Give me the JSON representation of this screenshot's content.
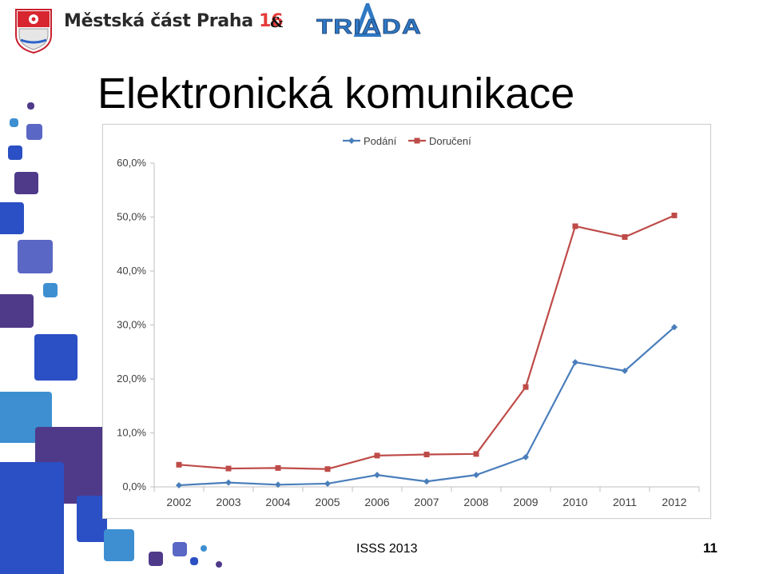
{
  "header": {
    "org_name": "Městská část Praha",
    "org_number": "16",
    "ampersand": "&",
    "partner_logo_text": "TRIADA"
  },
  "title": "Elektronická komunikace",
  "footer": {
    "event": "ISSS 2013",
    "page_number": "11"
  },
  "colors": {
    "series_podani": "#4a7ebb",
    "series_doruceni": "#be4b48",
    "deco_blue": "#2b4fc4",
    "deco_purple": "#4f3a8a",
    "deco_light_blue": "#3d8fd1"
  },
  "chart_data": {
    "type": "line",
    "title": "",
    "xlabel": "",
    "ylabel": "",
    "x": [
      "2002",
      "2003",
      "2004",
      "2005",
      "2006",
      "2007",
      "2008",
      "2009",
      "2010",
      "2011",
      "2012"
    ],
    "ylim": [
      0,
      60
    ],
    "y_ticks": [
      0,
      10,
      20,
      30,
      40,
      50,
      60
    ],
    "y_tick_labels": [
      "0,0%",
      "10,0%",
      "20,0%",
      "30,0%",
      "40,0%",
      "50,0%",
      "60,0%"
    ],
    "grid": false,
    "legend_position": "top",
    "series": [
      {
        "name": "Podání",
        "marker": "diamond",
        "values": [
          0.3,
          0.8,
          0.4,
          0.6,
          2.2,
          1.0,
          2.2,
          5.5,
          23.1,
          21.5,
          29.6
        ]
      },
      {
        "name": "Doručení",
        "marker": "square",
        "values": [
          4.1,
          3.4,
          3.5,
          3.3,
          5.8,
          6.0,
          6.1,
          18.5,
          48.3,
          46.3,
          50.3
        ]
      }
    ]
  }
}
